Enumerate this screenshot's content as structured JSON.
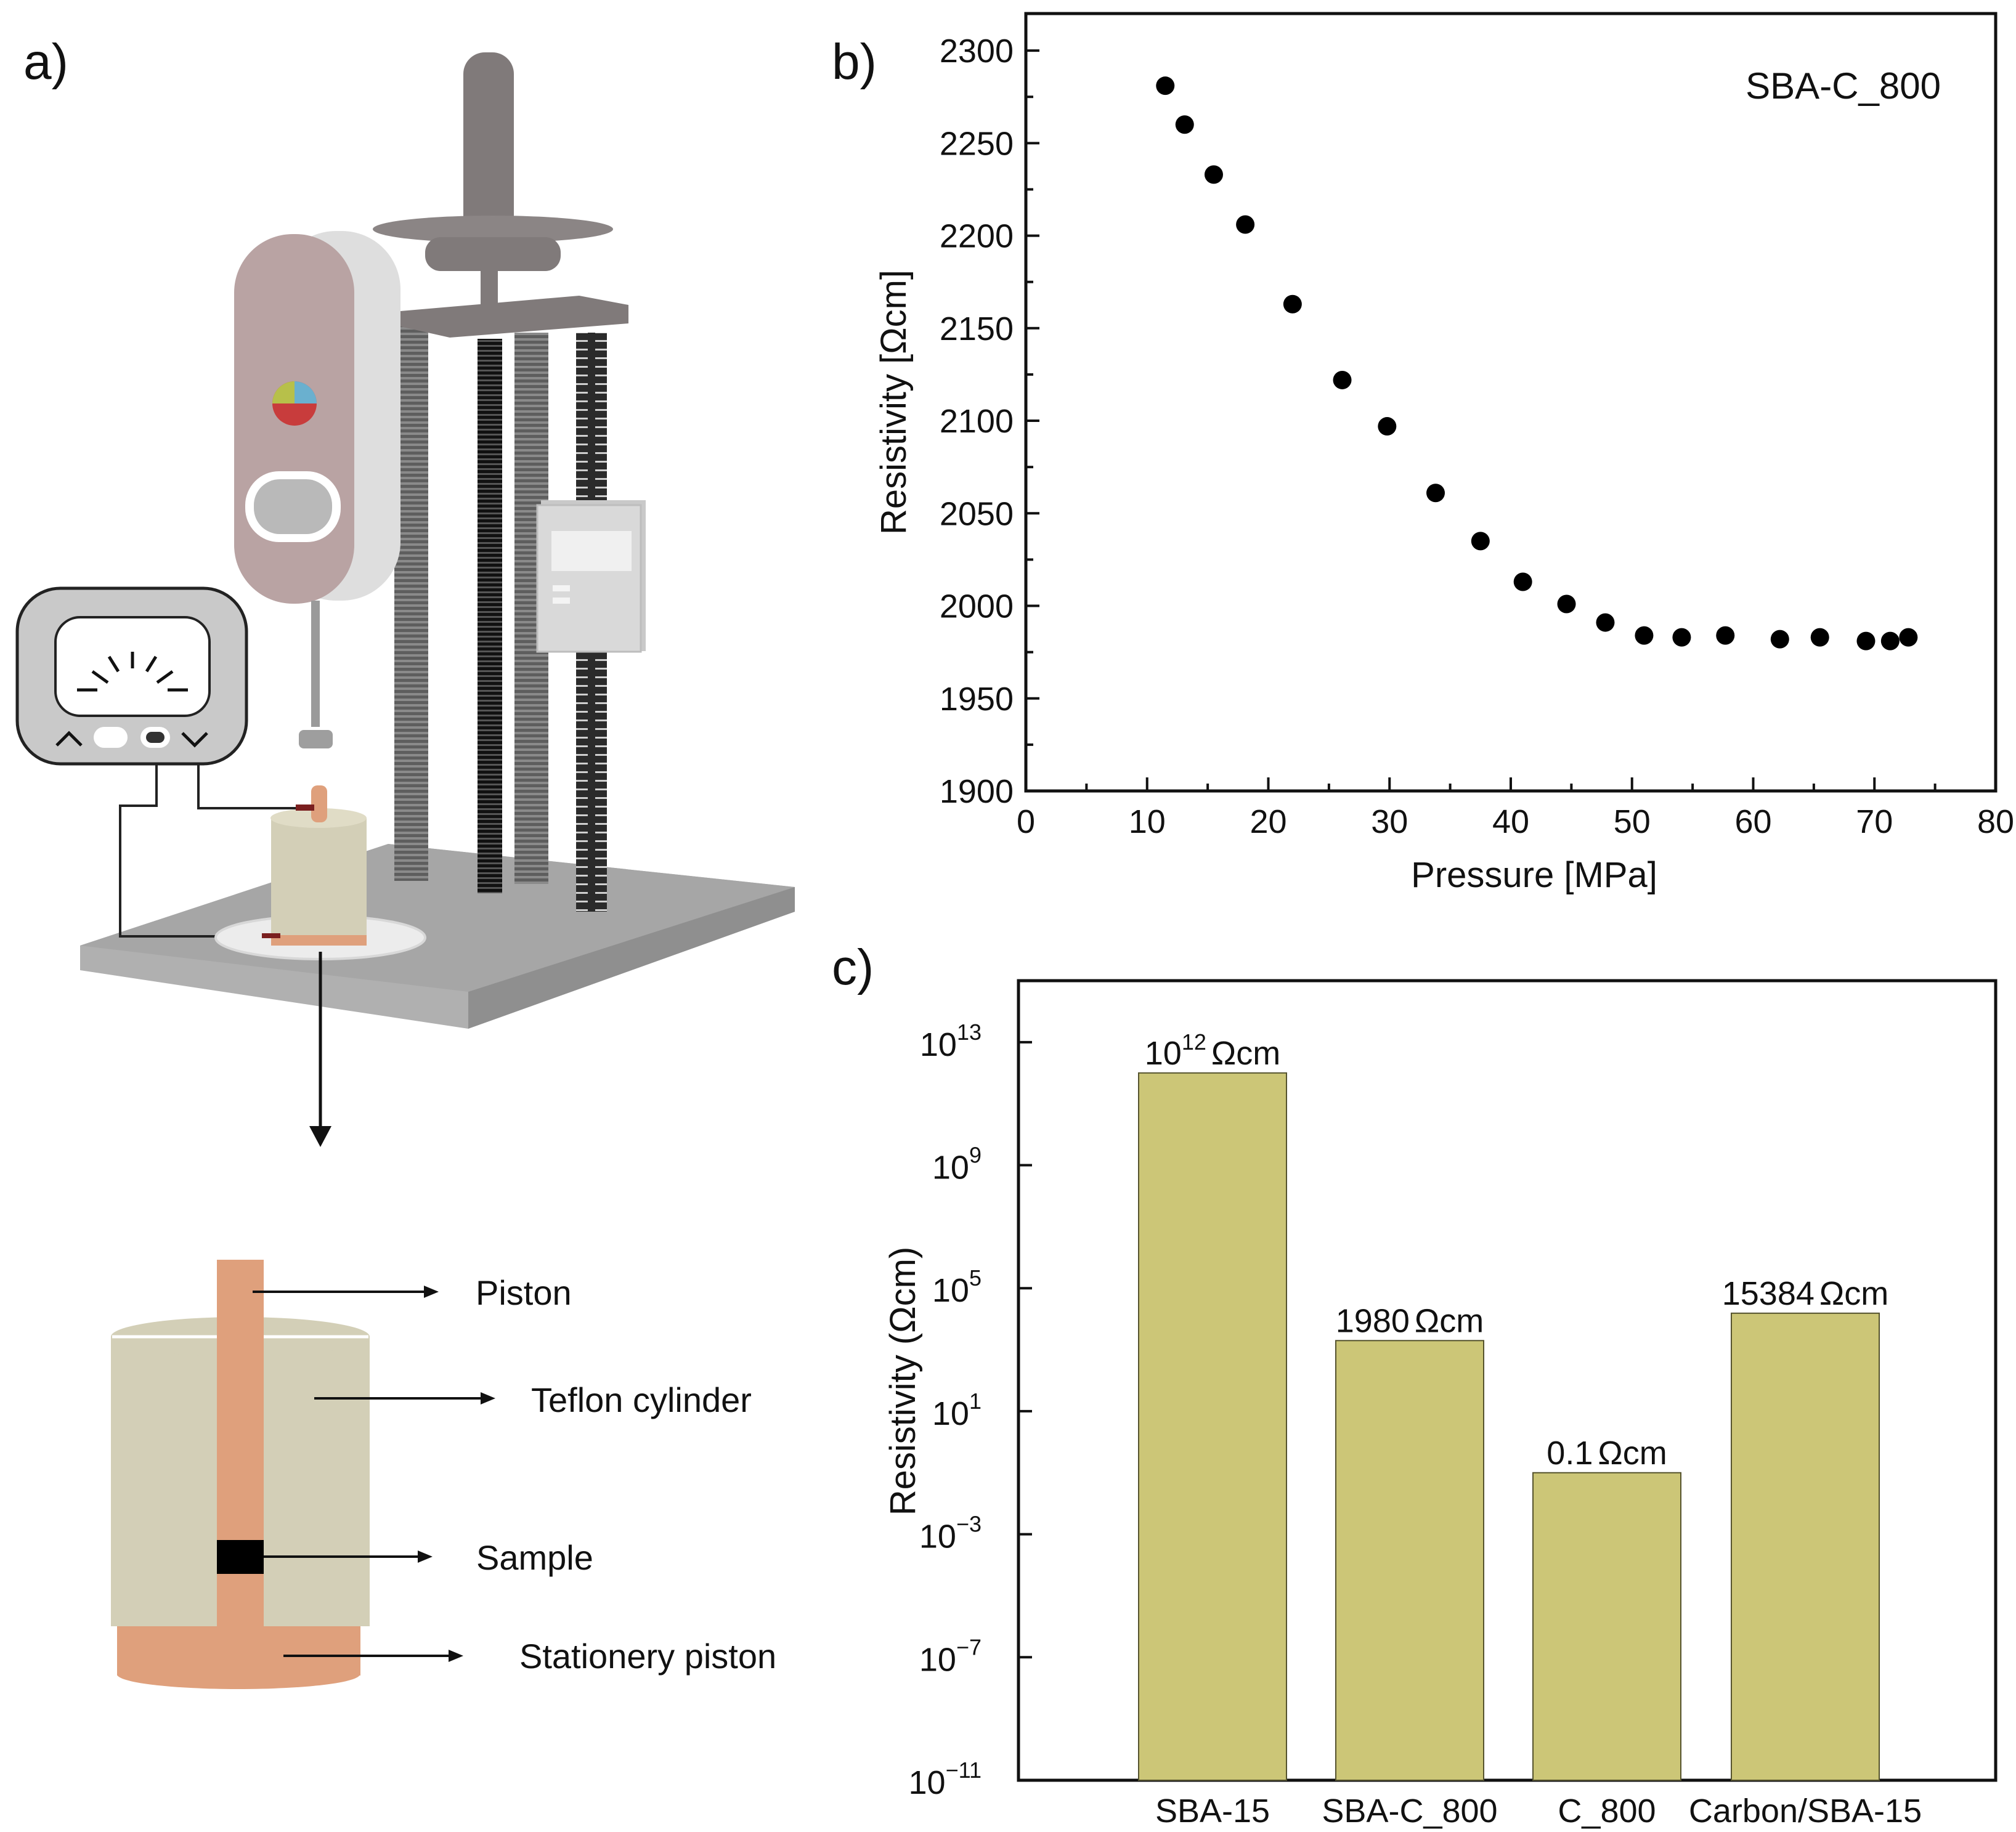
{
  "panel_labels": {
    "a": "a)",
    "b": "b)",
    "c": "c)"
  },
  "diagram": {
    "labels": [
      "Piston",
      "Teflon cylinder",
      "Sample",
      "Stationery piston"
    ],
    "colors": {
      "copper": "#DFA07C",
      "teflon": "#D3CFB7",
      "steel": "#807A7A",
      "base": "#A6A6A6",
      "body": "#B9A3A3",
      "sample": "#000000"
    }
  },
  "chart_data": [
    {
      "type": "scatter",
      "title": "",
      "legend_text": "SBA-C_800",
      "xlabel": "Pressure [MPa]",
      "ylabel": "Resistivity [Ωcm]",
      "xlim": [
        0,
        80
      ],
      "ylim": [
        1900,
        2320
      ],
      "xticks": [
        0,
        10,
        20,
        30,
        40,
        50,
        60,
        70,
        80
      ],
      "yticks": [
        1900,
        1950,
        2000,
        2050,
        2100,
        2150,
        2200,
        2250,
        2300
      ],
      "marker_color": "#000000",
      "points": [
        {
          "x": 11.5,
          "y": 2281
        },
        {
          "x": 13.1,
          "y": 2260
        },
        {
          "x": 15.5,
          "y": 2233
        },
        {
          "x": 18.1,
          "y": 2206
        },
        {
          "x": 22.0,
          "y": 2163
        },
        {
          "x": 26.1,
          "y": 2122
        },
        {
          "x": 29.8,
          "y": 2097
        },
        {
          "x": 33.8,
          "y": 2061
        },
        {
          "x": 37.5,
          "y": 2035
        },
        {
          "x": 41.0,
          "y": 2013
        },
        {
          "x": 44.6,
          "y": 2001
        },
        {
          "x": 47.8,
          "y": 1991
        },
        {
          "x": 51.0,
          "y": 1984
        },
        {
          "x": 54.1,
          "y": 1983
        },
        {
          "x": 57.7,
          "y": 1984
        },
        {
          "x": 62.2,
          "y": 1982
        },
        {
          "x": 65.5,
          "y": 1983
        },
        {
          "x": 69.3,
          "y": 1981
        },
        {
          "x": 71.3,
          "y": 1981
        },
        {
          "x": 72.8,
          "y": 1983
        }
      ]
    },
    {
      "type": "bar",
      "title": "",
      "ylabel": "Resistivity (Ωcm)",
      "yscale": "log",
      "ylim_exp": [
        -11,
        15
      ],
      "yticks_exp": [
        -11,
        -7,
        -3,
        1,
        5,
        9,
        13
      ],
      "tick_base": "10",
      "tick_exp_labels": [
        "−11",
        "−7",
        "−3",
        "1",
        "5",
        "9",
        "13"
      ],
      "bar_color": "#CCC677",
      "categories": [
        "SBA-15",
        "SBA-C_800",
        "C_800",
        "Carbon/SBA-15"
      ],
      "values": [
        1000000000000.0,
        1980,
        0.1,
        15384
      ],
      "data_labels": [
        {
          "base": "10",
          "exp": "12",
          "unit": "Ωcm"
        },
        {
          "base": "1980",
          "exp": "",
          "unit": "Ωcm"
        },
        {
          "base": "0.1",
          "exp": "",
          "unit": "Ωcm"
        },
        {
          "base": "15384",
          "exp": "",
          "unit": "Ωcm"
        }
      ]
    }
  ]
}
